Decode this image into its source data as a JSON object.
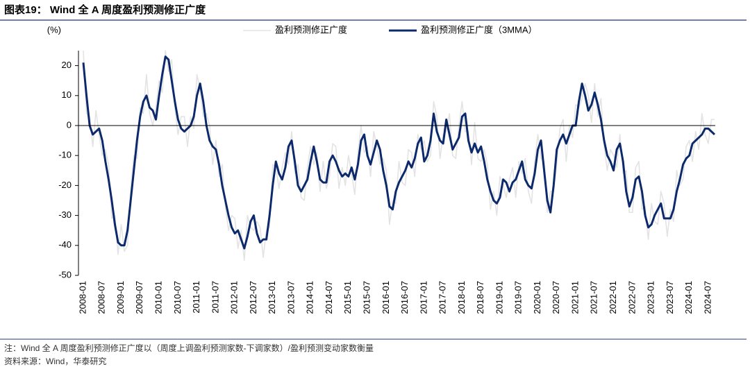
{
  "chart_data": {
    "type": "line",
    "title": "图表19：  Wind 全 A 周度盈利预测修正广度",
    "y_label": "(%)",
    "note": "注：Wind 全 A 周度盈利预测修正广度以（周度上调盈利预测家数-下调家数）/盈利预测变动家数衡量",
    "source": "资料来源：Wind，华泰研究",
    "ylim": [
      -50,
      25
    ],
    "yticks": [
      -50,
      -40,
      -30,
      -20,
      -10,
      0,
      10,
      20
    ],
    "categories": [
      "2008-01",
      null,
      null,
      null,
      null,
      null,
      "2008-07",
      null,
      null,
      null,
      null,
      null,
      "2009-01",
      null,
      null,
      null,
      null,
      null,
      "2009-07",
      null,
      null,
      null,
      null,
      null,
      "2010-01",
      null,
      null,
      null,
      null,
      null,
      "2010-07",
      null,
      null,
      null,
      null,
      null,
      "2011-01",
      null,
      null,
      null,
      null,
      null,
      "2011-07",
      null,
      null,
      null,
      null,
      null,
      "2012-01",
      null,
      null,
      null,
      null,
      null,
      "2012-07",
      null,
      null,
      null,
      null,
      null,
      "2013-01",
      null,
      null,
      null,
      null,
      null,
      "2013-07",
      null,
      null,
      null,
      null,
      null,
      "2014-01",
      null,
      null,
      null,
      null,
      null,
      "2014-07",
      null,
      null,
      null,
      null,
      null,
      "2015-01",
      null,
      null,
      null,
      null,
      null,
      "2015-07",
      null,
      null,
      null,
      null,
      null,
      "2016-01",
      null,
      null,
      null,
      null,
      null,
      "2016-07",
      null,
      null,
      null,
      null,
      null,
      "2017-01",
      null,
      null,
      null,
      null,
      null,
      "2017-07",
      null,
      null,
      null,
      null,
      null,
      "2018-01",
      null,
      null,
      null,
      null,
      null,
      "2018-07",
      null,
      null,
      null,
      null,
      null,
      "2019-01",
      null,
      null,
      null,
      null,
      null,
      "2019-07",
      null,
      null,
      null,
      null,
      null,
      "2020-01",
      null,
      null,
      null,
      null,
      null,
      "2020-07",
      null,
      null,
      null,
      null,
      null,
      "2021-01",
      null,
      null,
      null,
      null,
      null,
      "2021-07",
      null,
      null,
      null,
      null,
      null,
      "2022-01",
      null,
      null,
      null,
      null,
      null,
      "2022-07",
      null,
      null,
      null,
      null,
      null,
      "2023-01",
      null,
      null,
      null,
      null,
      null,
      "2023-07",
      null,
      null,
      null,
      null,
      null,
      "2024-01",
      null,
      null,
      null,
      null,
      null,
      "2024-07",
      null,
      null
    ],
    "series": [
      {
        "name": "盈利预测修正广度",
        "color": "#e3e3e3",
        "width": 1.6,
        "values": [
          25,
          4,
          3,
          -7,
          5,
          -3,
          -10,
          -8,
          -13,
          -31,
          -30,
          -43,
          -33,
          -42,
          -40,
          -21,
          -10,
          -11,
          6,
          4,
          17,
          4,
          0,
          6,
          15,
          11,
          25,
          18,
          22,
          6,
          -3,
          3,
          3,
          -7,
          3,
          -1,
          17,
          12,
          3,
          4,
          0,
          -13,
          -5,
          -17,
          -13,
          -27,
          -35,
          -30,
          -31,
          -41,
          -35,
          -45,
          -30,
          -34,
          -35,
          -32,
          -34,
          -44,
          -35,
          -34,
          -13,
          -14,
          -21,
          -14,
          -9,
          -13,
          -2,
          -16,
          -13,
          -24,
          -25,
          -14,
          -7,
          -13,
          -9,
          -22,
          -12,
          -21,
          -17,
          -6,
          -7,
          -21,
          -14,
          -20,
          -10,
          -16,
          -23,
          -9,
          0,
          -9,
          -7,
          -17,
          -2,
          -7,
          -13,
          -11,
          -15,
          -33,
          -25,
          -26,
          -12,
          -19,
          -20,
          -8,
          -9,
          -17,
          -3,
          -8,
          -5,
          -12,
          -10,
          8,
          3,
          -11,
          -3,
          -2,
          4,
          -10,
          -11,
          0,
          8,
          -2,
          -2,
          -13,
          1,
          -11,
          -12,
          -8,
          -13,
          -28,
          -22,
          -30,
          -17,
          -20,
          -24,
          -18,
          -14,
          -24,
          -12,
          -16,
          -11,
          -22,
          -26,
          -12,
          -3,
          -11,
          -12,
          -29,
          -22,
          -22,
          -13,
          -1,
          2,
          -12,
          0,
          -4,
          7,
          6,
          9,
          14,
          10,
          1,
          14,
          3,
          9,
          -7,
          -15,
          -8,
          -10,
          -14,
          -3,
          -16,
          -15,
          -29,
          -29,
          -14,
          -12,
          -28,
          -27,
          -38,
          -26,
          -32,
          -33,
          -22,
          -26,
          -37,
          -28,
          -32,
          -15,
          -20,
          -18,
          -7,
          -5,
          -12,
          -2,
          -8,
          4,
          -3,
          -6,
          2,
          2
        ]
      },
      {
        "name": "盈利预测修正广度（3MMA）",
        "color": "#0c2a6b",
        "width": 3,
        "values": [
          21,
          10,
          0,
          -3,
          -2,
          -1,
          -5,
          -12,
          -18,
          -25,
          -33,
          -39,
          -40,
          -40,
          -35,
          -25,
          -15,
          -5,
          3,
          8,
          10,
          6,
          5,
          2,
          10,
          17,
          23,
          22,
          15,
          8,
          2,
          -1,
          -2,
          -1,
          0,
          3,
          10,
          14,
          8,
          0,
          -5,
          -7,
          -8,
          -13,
          -20,
          -25,
          -30,
          -34,
          -36,
          -35,
          -38,
          -41,
          -37,
          -32,
          -30,
          -36,
          -39,
          -38,
          -38,
          -30,
          -20,
          -12,
          -16,
          -18,
          -14,
          -7,
          -5,
          -12,
          -20,
          -22,
          -20,
          -18,
          -12,
          -7,
          -12,
          -18,
          -19,
          -19,
          -12,
          -10,
          -12,
          -15,
          -17,
          -16,
          -17,
          -14,
          -18,
          -13,
          -5,
          -3,
          -10,
          -13,
          -9,
          -5,
          -8,
          -15,
          -20,
          -27,
          -28,
          -22,
          -19,
          -17,
          -15,
          -12,
          -14,
          -11,
          -6,
          -4,
          -12,
          -10,
          -5,
          4,
          -2,
          -5,
          -6,
          2,
          -3,
          -8,
          -6,
          -4,
          3,
          4,
          -5,
          -9,
          -6,
          -9,
          -7,
          -12,
          -18,
          -22,
          -25,
          -26,
          -24,
          -18,
          -19,
          -22,
          -19,
          -18,
          -15,
          -12,
          -18,
          -20,
          -21,
          -16,
          -8,
          -5,
          -15,
          -25,
          -29,
          -20,
          -8,
          -5,
          -3,
          -6,
          -3,
          0,
          0,
          8,
          14,
          10,
          5,
          7,
          11,
          7,
          2,
          -5,
          -10,
          -12,
          -15,
          -8,
          -6,
          -12,
          -22,
          -27,
          -24,
          -18,
          -17,
          -22,
          -30,
          -34,
          -33,
          -30,
          -28,
          -26,
          -31,
          -31,
          -31,
          -28,
          -22,
          -18,
          -13,
          -11,
          -10,
          -6,
          -5,
          -4,
          -3,
          -1,
          -1,
          -2,
          -3
        ]
      }
    ]
  }
}
